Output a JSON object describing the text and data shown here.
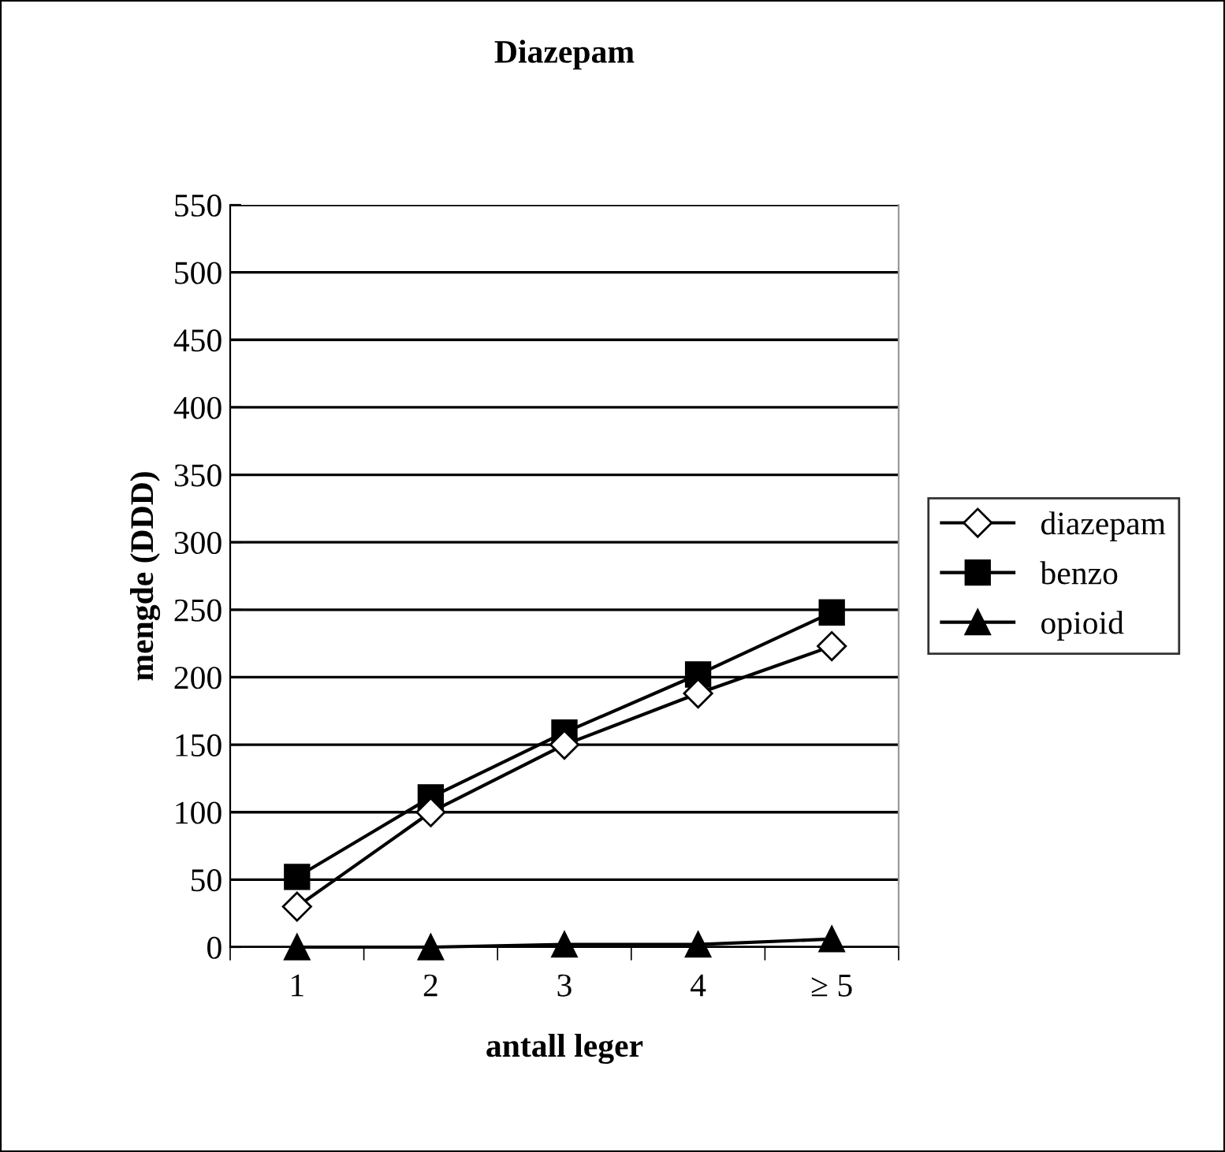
{
  "chart_data": {
    "type": "line",
    "title": "Diazepam",
    "xlabel": "antall leger",
    "ylabel": "mengde (DDD)",
    "categories": [
      "1",
      "2",
      "3",
      "4",
      "≥ 5"
    ],
    "series": [
      {
        "name": "diazepam",
        "color": "#000000",
        "marker": "diamond",
        "values": [
          30,
          100,
          150,
          188,
          223
        ]
      },
      {
        "name": "benzo",
        "color": "#000000",
        "marker": "square",
        "values": [
          52,
          111,
          159,
          202,
          248
        ]
      },
      {
        "name": "opioid",
        "color": "#000000",
        "marker": "triangle",
        "values": [
          0,
          0,
          2,
          2,
          6
        ]
      }
    ],
    "ylim": [
      0,
      550
    ],
    "yticks": [
      0,
      50,
      100,
      150,
      200,
      250,
      300,
      350,
      400,
      450,
      500,
      550
    ],
    "grid": "y",
    "legend": "right",
    "line_style": "solid"
  }
}
